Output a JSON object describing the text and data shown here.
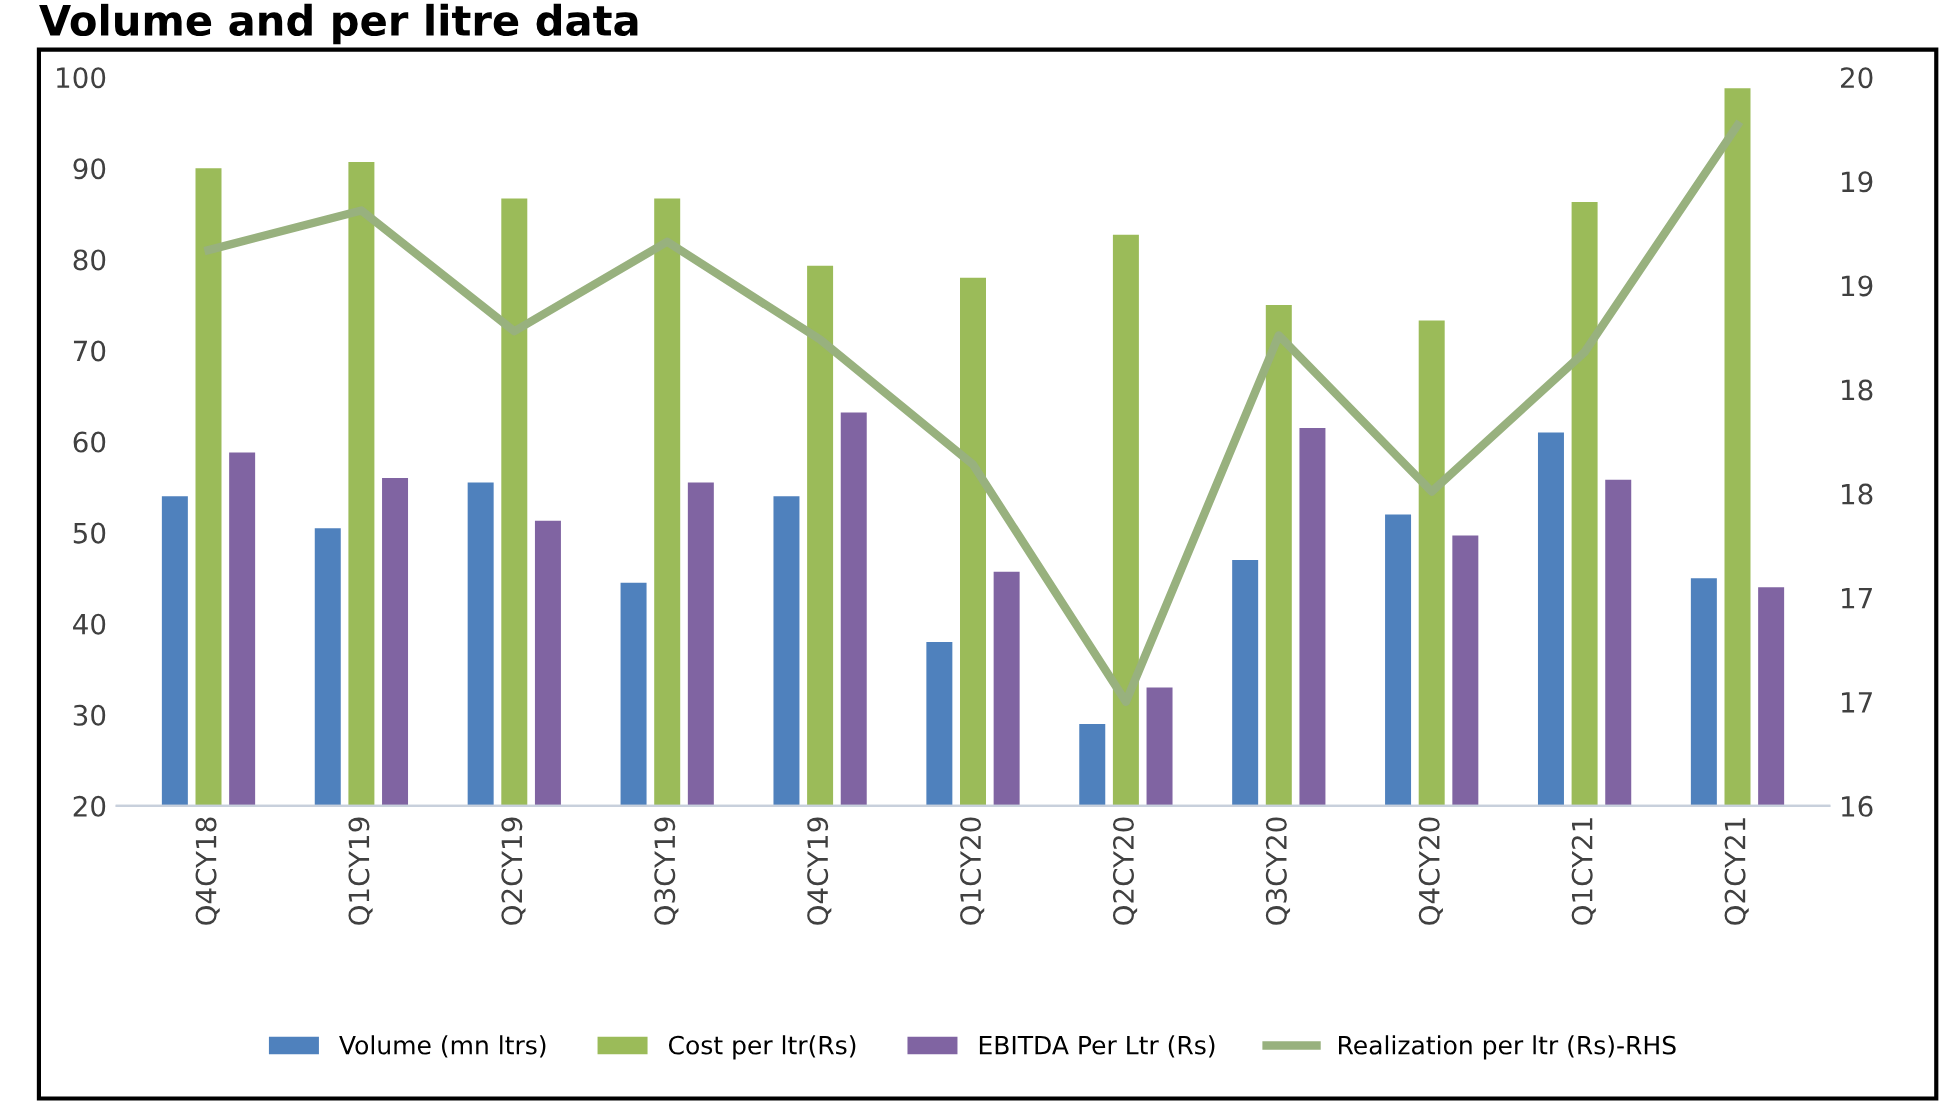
{
  "chart_data": {
    "type": "bar",
    "title": "Volume and per litre data",
    "categories": [
      "Q4CY18",
      "Q1CY19",
      "Q2CY19",
      "Q3CY19",
      "Q4CY19",
      "Q1CY20",
      "Q2CY20",
      "Q3CY20",
      "Q4CY20",
      "Q1CY21",
      "Q2CY21"
    ],
    "series": [
      {
        "name": "Volume (mn ltrs)",
        "color": "#4f81bd",
        "values": [
          54,
          50.5,
          55.5,
          44.5,
          54,
          38,
          29,
          47,
          52,
          61,
          45
        ]
      },
      {
        "name": "Cost per ltr(Rs)",
        "color": "#9bbb59",
        "values": [
          90,
          90.7,
          86.7,
          86.7,
          79.3,
          78,
          82.7,
          75,
          73.3,
          86.3,
          98.8
        ]
      },
      {
        "name": "EBITDA Per Ltr (Rs)",
        "color": "#8064a2",
        "values": [
          58.8,
          56,
          51.3,
          55.5,
          63.2,
          45.7,
          33,
          61.5,
          49.7,
          55.8,
          44
        ]
      },
      {
        "name": "Realization per ltr (Rs)-RHS",
        "color": "#98b17e",
        "type": "line",
        "axis": "y2",
        "values": [
          19.17,
          19.36,
          18.78,
          19.21,
          18.74,
          18.14,
          17.0,
          18.76,
          18.01,
          18.68,
          19.77
        ]
      }
    ],
    "ylim": [
      20,
      100
    ],
    "yticks": [
      20,
      30,
      40,
      50,
      60,
      70,
      80,
      90,
      100
    ],
    "y2lim": [
      16.5,
      20
    ],
    "y2ticks": [
      {
        "value": 16.5,
        "label": "16"
      },
      17,
      {
        "value": 17.5,
        "label": "17"
      },
      18,
      {
        "value": 18.5,
        "label": "18"
      },
      19,
      {
        "value": 19.5,
        "label": "19"
      },
      20
    ],
    "grid": false,
    "legend": "bottom",
    "marker": "none",
    "line_style": "solid"
  }
}
